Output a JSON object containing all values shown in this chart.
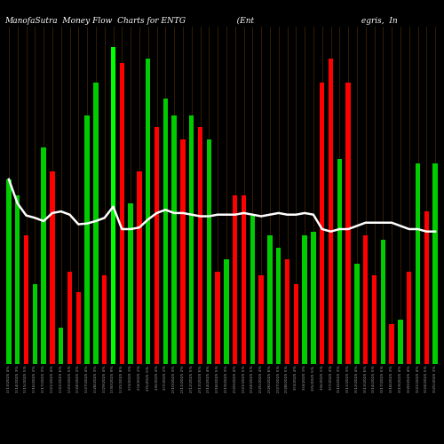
{
  "title": "ManofaSutra  Money Flow  Charts for ENTG                    (Ent                                          egris,  In",
  "background_color": "#000000",
  "bar_colors": [
    "#00cc00",
    "#00cc00",
    "#ff0000",
    "#00cc00",
    "#00cc00",
    "#ff0000",
    "#00cc00",
    "#ff0000",
    "#ff0000",
    "#00cc00",
    "#00cc00",
    "#ff0000",
    "#00ff00",
    "#ff0000",
    "#00cc00",
    "#ff0000",
    "#00cc00",
    "#ff0000",
    "#00cc00",
    "#00cc00",
    "#ff0000",
    "#00cc00",
    "#ff0000",
    "#00cc00",
    "#ff0000",
    "#00cc00",
    "#ff0000",
    "#ff0000",
    "#00cc00",
    "#ff0000",
    "#00cc00",
    "#00cc00",
    "#ff0000",
    "#ff0000",
    "#00cc00",
    "#00cc00",
    "#ff0000",
    "#ff0000",
    "#00cc00",
    "#ff0000",
    "#00cc00",
    "#ff0000",
    "#ff0000",
    "#00cc00",
    "#ff0000",
    "#00cc00",
    "#ff0000",
    "#00cc00",
    "#ff0000",
    "#00cc00"
  ],
  "bar_heights": [
    230,
    210,
    160,
    100,
    270,
    240,
    45,
    115,
    90,
    310,
    350,
    110,
    395,
    375,
    200,
    240,
    380,
    295,
    330,
    310,
    280,
    310,
    295,
    280,
    115,
    130,
    210,
    210,
    185,
    110,
    160,
    145,
    130,
    100,
    160,
    165,
    350,
    380,
    255,
    350,
    125,
    160,
    110,
    155,
    50,
    55,
    115,
    250,
    190,
    250
  ],
  "line_values": [
    230,
    200,
    185,
    182,
    178,
    188,
    190,
    186,
    174,
    175,
    178,
    182,
    196,
    168,
    168,
    170,
    180,
    188,
    192,
    188,
    188,
    186,
    184,
    184,
    186,
    186,
    186,
    188,
    186,
    184,
    186,
    188,
    186,
    186,
    188,
    186,
    168,
    165,
    168,
    168,
    172,
    176,
    176,
    176,
    176,
    172,
    168,
    168,
    165,
    165
  ],
  "labels": [
    "1/13/2025 4%",
    "1/14/2025 3%",
    "1/15/2025 5%",
    "1/16/2025 2%",
    "1/17/2025 3%",
    "1/21/2025 4%",
    "1/22/2025 6%",
    "1/23/2025 5%",
    "1/24/2025 2%",
    "1/27/2025 4%",
    "1/28/2025 3%",
    "1/29/2025 4%",
    "1/30/2025 9%",
    "1/31/2025 8%",
    "2/3/2025 3%",
    "2/4/2025 2%",
    "2/5/2025 5%",
    "2/6/2025 4%",
    "2/7/2025 2%",
    "2/10/2025 3%",
    "2/11/2025 2%",
    "2/12/2025 5%",
    "2/13/2025 6%",
    "2/14/2025 4%",
    "2/18/2025 5%",
    "2/19/2025 3%",
    "2/20/2025 4%",
    "2/21/2025 5%",
    "2/24/2025 5%",
    "2/25/2025 4%",
    "2/26/2025 6%",
    "2/27/2025 5%",
    "2/28/2025 5%",
    "3/3/2025 4%",
    "3/4/2025 3%",
    "3/5/2025 5%",
    "3/6/2025 5%",
    "3/7/2025 4%",
    "3/10/2025 3%",
    "3/11/2025 3%",
    "3/12/2025 4%",
    "3/13/2025 6%",
    "3/14/2025 5%",
    "3/17/2025 5%",
    "3/18/2025 3%",
    "3/19/2025 4%",
    "3/20/2025 4%",
    "3/21/2025 4%",
    "3/24/2025 5%",
    "3/25/2025 3%"
  ],
  "title_color": "#ffffff",
  "title_fontsize": 6.5,
  "line_color": "#ffffff",
  "line_width": 1.8,
  "ylim": [
    0,
    420
  ],
  "figsize": [
    5.0,
    5.0
  ],
  "dpi": 100,
  "grid_color": "#4a2800",
  "grid_linewidth": 0.5,
  "label_fontsize": 3.2,
  "label_color": "#aaaaaa"
}
